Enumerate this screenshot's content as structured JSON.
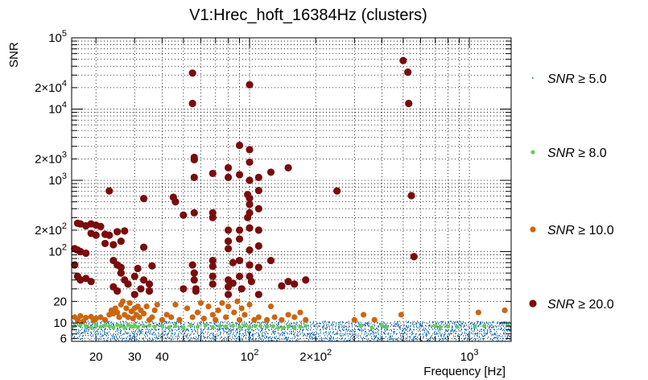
{
  "chart_data": {
    "type": "scatter",
    "title": "V1:Hrec_hoft_16384Hz (clusters)",
    "xlabel": "Frequency [Hz]",
    "ylabel": "SNR",
    "xscale": "log",
    "yscale": "log",
    "xlim": [
      15.5,
      1550
    ],
    "ylim": [
      5.5,
      100000
    ],
    "grid": true,
    "legend_position": "right",
    "x_ticks": [
      {
        "value": 20,
        "label": "20"
      },
      {
        "value": 30,
        "label": "30"
      },
      {
        "value": 40,
        "label": "40"
      },
      {
        "value": 100,
        "label": "10",
        "exp": "2"
      },
      {
        "value": 200,
        "label": "2×10",
        "exp": "2"
      },
      {
        "value": 1000,
        "label": "10",
        "exp": "3"
      }
    ],
    "y_ticks": [
      {
        "value": 6,
        "label": "6"
      },
      {
        "value": 10,
        "label": "10"
      },
      {
        "value": 20,
        "label": "20"
      },
      {
        "value": 100,
        "label": "10",
        "exp": "2"
      },
      {
        "value": 200,
        "label": "2×10",
        "exp": "2"
      },
      {
        "value": 1000,
        "label": "10",
        "exp": "3"
      },
      {
        "value": 2000,
        "label": "2×10",
        "exp": "3"
      },
      {
        "value": 10000,
        "label": "10",
        "exp": "4"
      },
      {
        "value": 20000,
        "label": "2×10",
        "exp": "4"
      },
      {
        "value": 100000,
        "label": "10",
        "exp": "5"
      }
    ],
    "series": [
      {
        "name": "SNR ≥ 5.0",
        "symbol": "SNR",
        "relation": "≥ 5.0",
        "color": "#1f77b4",
        "marker": "dot",
        "distribution": "dense band of small clusters spanning the full frequency range with SNR between 5.5 and 10"
      },
      {
        "name": "SNR ≥ 8.0",
        "symbol": "SNR",
        "relation": "≥ 8.0",
        "color": "#66cc55",
        "marker": "circle-small",
        "points": [
          [
            16,
            9
          ],
          [
            17,
            9.3
          ],
          [
            18,
            9
          ],
          [
            19,
            8.7
          ],
          [
            20,
            9.4
          ],
          [
            21,
            8.8
          ],
          [
            22,
            9.2
          ],
          [
            23,
            9
          ],
          [
            24,
            8.6
          ],
          [
            25,
            9.3
          ],
          [
            26,
            9.1
          ],
          [
            27,
            8.5
          ],
          [
            28,
            9.4
          ],
          [
            29,
            8.9
          ],
          [
            30,
            9.2
          ],
          [
            31,
            8.7
          ],
          [
            33,
            9
          ],
          [
            35,
            9.2
          ],
          [
            37,
            8.8
          ],
          [
            40,
            9.1
          ],
          [
            43,
            8.7
          ],
          [
            46,
            9
          ],
          [
            50,
            8.6
          ],
          [
            54,
            9.2
          ],
          [
            58,
            8.8
          ],
          [
            63,
            9.3
          ],
          [
            68,
            8.7
          ],
          [
            73,
            9
          ],
          [
            78,
            8.9
          ],
          [
            84,
            9.1
          ],
          [
            90,
            8.8
          ],
          [
            95,
            9.2
          ],
          [
            100,
            8.7
          ],
          [
            106,
            9
          ],
          [
            112,
            9.1
          ],
          [
            120,
            8.8
          ],
          [
            128,
            9
          ],
          [
            135,
            8.6
          ],
          [
            142,
            8.5
          ],
          [
            150,
            8.9
          ],
          [
            160,
            8.6
          ],
          [
            170,
            8.8
          ],
          [
            180,
            9
          ],
          [
            320,
            9.1
          ],
          [
            360,
            8.6
          ],
          [
            400,
            9.2
          ],
          [
            420,
            8.7
          ],
          [
            700,
            9
          ],
          [
            740,
            8.7
          ],
          [
            800,
            8.9
          ],
          [
            880,
            8.8
          ],
          [
            1060,
            9
          ],
          [
            1170,
            9.1
          ],
          [
            1500,
            9.3
          ]
        ]
      },
      {
        "name": "SNR ≥ 10.0",
        "symbol": "SNR",
        "relation": "≥ 10.0",
        "color": "#cc6611",
        "marker": "circle-medium",
        "points": [
          [
            16,
            12
          ],
          [
            16.5,
            11
          ],
          [
            17,
            12.5
          ],
          [
            17.5,
            10.5
          ],
          [
            18,
            11.8
          ],
          [
            19,
            12.2
          ],
          [
            19.5,
            10.8
          ],
          [
            20,
            11.5
          ],
          [
            21,
            12
          ],
          [
            22,
            11
          ],
          [
            23,
            13
          ],
          [
            23.5,
            15
          ],
          [
            24,
            13.5
          ],
          [
            24.5,
            16
          ],
          [
            25,
            14
          ],
          [
            25.5,
            12
          ],
          [
            26,
            18
          ],
          [
            26.5,
            20
          ],
          [
            27,
            13
          ],
          [
            27.5,
            16
          ],
          [
            28,
            12
          ],
          [
            28.5,
            19
          ],
          [
            29,
            14.5
          ],
          [
            29.5,
            11.5
          ],
          [
            30,
            16
          ],
          [
            30.5,
            13
          ],
          [
            31,
            17
          ],
          [
            31.5,
            12
          ],
          [
            32,
            15
          ],
          [
            33,
            13.5
          ],
          [
            34,
            17
          ],
          [
            35,
            11
          ],
          [
            36,
            12
          ],
          [
            37,
            15
          ],
          [
            38,
            18
          ],
          [
            40,
            11
          ],
          [
            42,
            13
          ],
          [
            44,
            12
          ],
          [
            46,
            18
          ],
          [
            48,
            11
          ],
          [
            52,
            16
          ],
          [
            55,
            12
          ],
          [
            58,
            14
          ],
          [
            60,
            19
          ],
          [
            62,
            11.5
          ],
          [
            65,
            17
          ],
          [
            68,
            13
          ],
          [
            70,
            11
          ],
          [
            72,
            15
          ],
          [
            75,
            19
          ],
          [
            78,
            12
          ],
          [
            80,
            17
          ],
          [
            85,
            14
          ],
          [
            88,
            20
          ],
          [
            90,
            11
          ],
          [
            92,
            16
          ],
          [
            95,
            13
          ],
          [
            100,
            18
          ],
          [
            105,
            11
          ],
          [
            110,
            12
          ],
          [
            120,
            11
          ],
          [
            125,
            17
          ],
          [
            130,
            12
          ],
          [
            140,
            11
          ],
          [
            150,
            13
          ],
          [
            160,
            12
          ],
          [
            170,
            14
          ],
          [
            180,
            11
          ],
          [
            300,
            11
          ],
          [
            330,
            13
          ],
          [
            370,
            11
          ],
          [
            490,
            13
          ],
          [
            1100,
            14
          ],
          [
            1450,
            15
          ]
        ]
      },
      {
        "name": "SNR ≥ 20.0",
        "symbol": "SNR",
        "relation": "≥ 20.0",
        "color": "#7a0c0c",
        "marker": "circle-large",
        "points": [
          [
            16,
            110
          ],
          [
            16.5,
            105
          ],
          [
            17,
            100
          ],
          [
            18,
            95
          ],
          [
            16,
            65
          ],
          [
            16.5,
            45
          ],
          [
            17,
            40
          ],
          [
            18,
            42
          ],
          [
            19,
            38
          ],
          [
            16.5,
            250
          ],
          [
            17,
            245
          ],
          [
            18,
            230
          ],
          [
            19,
            245
          ],
          [
            20,
            235
          ],
          [
            21,
            225
          ],
          [
            19,
            180
          ],
          [
            20,
            170
          ],
          [
            22,
            175
          ],
          [
            23,
            170
          ],
          [
            25,
            190
          ],
          [
            27,
            195
          ],
          [
            23,
            710
          ],
          [
            22,
            130
          ],
          [
            24,
            125
          ],
          [
            26,
            140
          ],
          [
            24,
            75
          ],
          [
            25,
            65
          ],
          [
            26,
            60
          ],
          [
            26,
            50
          ],
          [
            27,
            40
          ],
          [
            24,
            32
          ],
          [
            25,
            28
          ],
          [
            28,
            35
          ],
          [
            30,
            45
          ],
          [
            31,
            58
          ],
          [
            30,
            25
          ],
          [
            32,
            30
          ],
          [
            33,
            40
          ],
          [
            35,
            35
          ],
          [
            33,
            115
          ],
          [
            36,
            63
          ],
          [
            35,
            28
          ],
          [
            33,
            555
          ],
          [
            45,
            580
          ],
          [
            46,
            500
          ],
          [
            50,
            30
          ],
          [
            55,
            65
          ],
          [
            56,
            50
          ],
          [
            56,
            40
          ],
          [
            57,
            30
          ],
          [
            57,
            28
          ],
          [
            55,
            32000
          ],
          [
            55,
            12000
          ],
          [
            56,
            2100
          ],
          [
            56,
            1950
          ],
          [
            56,
            1100
          ],
          [
            56,
            350
          ],
          [
            50,
            325
          ],
          [
            68,
            1250
          ],
          [
            68,
            350
          ],
          [
            68,
            300
          ],
          [
            68,
            75
          ],
          [
            68,
            62
          ],
          [
            68,
            45
          ],
          [
            68,
            35
          ],
          [
            80,
            1500
          ],
          [
            80,
            1100
          ],
          [
            80,
            200
          ],
          [
            80,
            140
          ],
          [
            80,
            110
          ],
          [
            80,
            40
          ],
          [
            80,
            32
          ],
          [
            80,
            25
          ],
          [
            84,
            70
          ],
          [
            84,
            36
          ],
          [
            90,
            3100
          ],
          [
            90,
            1200
          ],
          [
            90,
            200
          ],
          [
            90,
            150
          ],
          [
            90,
            75
          ],
          [
            90,
            45
          ],
          [
            92,
            30
          ],
          [
            98,
            630
          ],
          [
            98,
            300
          ],
          [
            100,
            22000
          ],
          [
            100,
            2700
          ],
          [
            100,
            1800
          ],
          [
            100,
            1000
          ],
          [
            100,
            560
          ],
          [
            100,
            460
          ],
          [
            100,
            350
          ],
          [
            100,
            215
          ],
          [
            100,
            105
          ],
          [
            100,
            65
          ],
          [
            100,
            45
          ],
          [
            102,
            38
          ],
          [
            110,
            1100
          ],
          [
            110,
            720
          ],
          [
            110,
            400
          ],
          [
            110,
            200
          ],
          [
            110,
            120
          ],
          [
            110,
            60
          ],
          [
            110,
            25
          ],
          [
            125,
            1300
          ],
          [
            125,
            75
          ],
          [
            150,
            1500
          ],
          [
            140,
            33
          ],
          [
            150,
            38
          ],
          [
            160,
            35
          ],
          [
            180,
            40
          ],
          [
            250,
            710
          ],
          [
            500,
            48000
          ],
          [
            525,
            33000
          ],
          [
            530,
            12000
          ],
          [
            545,
            610
          ],
          [
            560,
            85
          ]
        ]
      }
    ]
  }
}
